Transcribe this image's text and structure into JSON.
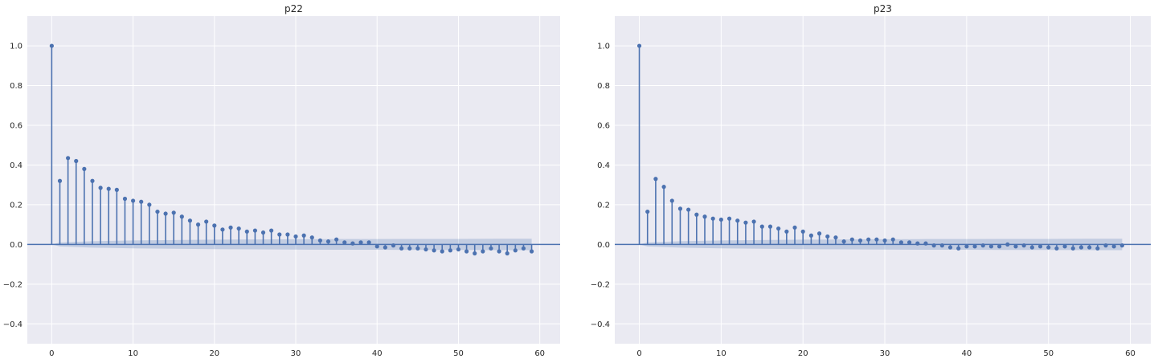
{
  "chart_data": [
    {
      "type": "stem",
      "title": "p22",
      "xlabel": "",
      "ylabel": "",
      "xlim": [
        -3,
        62.5
      ],
      "ylim": [
        -0.5,
        1.15
      ],
      "xticks": [
        0,
        10,
        20,
        30,
        40,
        50,
        60
      ],
      "yticks": [
        -0.4,
        -0.2,
        0.0,
        0.2,
        0.4,
        0.6,
        0.8,
        1.0
      ],
      "xtick_labels": [
        "0",
        "10",
        "20",
        "30",
        "40",
        "50",
        "60"
      ],
      "ytick_labels": [
        "−0.4",
        "−0.2",
        "0.0",
        "0.2",
        "0.4",
        "0.6",
        "0.8",
        "1.0"
      ],
      "grid": true,
      "color": "#4c72b0",
      "confidence_band": {
        "lags": [
          0,
          1,
          5,
          10,
          15,
          20,
          25,
          30,
          35,
          40,
          45,
          50,
          55,
          59
        ],
        "lower": [
          0,
          -0.01,
          -0.016,
          -0.02,
          -0.022,
          -0.024,
          -0.025,
          -0.026,
          -0.027,
          -0.027,
          -0.028,
          -0.028,
          -0.029,
          -0.029
        ],
        "upper": [
          0,
          0.01,
          0.016,
          0.02,
          0.022,
          0.024,
          0.025,
          0.026,
          0.027,
          0.027,
          0.028,
          0.028,
          0.029,
          0.029
        ]
      },
      "lags": [
        0,
        1,
        2,
        3,
        4,
        5,
        6,
        7,
        8,
        9,
        10,
        11,
        12,
        13,
        14,
        15,
        16,
        17,
        18,
        19,
        20,
        21,
        22,
        23,
        24,
        25,
        26,
        27,
        28,
        29,
        30,
        31,
        32,
        33,
        34,
        35,
        36,
        37,
        38,
        39,
        40,
        41,
        42,
        43,
        44,
        45,
        46,
        47,
        48,
        49,
        50,
        51,
        52,
        53,
        54,
        55,
        56,
        57,
        58,
        59
      ],
      "values": [
        1.0,
        0.32,
        0.435,
        0.42,
        0.38,
        0.32,
        0.285,
        0.28,
        0.275,
        0.23,
        0.22,
        0.215,
        0.2,
        0.165,
        0.155,
        0.16,
        0.14,
        0.12,
        0.1,
        0.115,
        0.095,
        0.075,
        0.085,
        0.08,
        0.065,
        0.07,
        0.06,
        0.07,
        0.05,
        0.05,
        0.04,
        0.045,
        0.035,
        0.02,
        0.015,
        0.025,
        0.01,
        0.005,
        0.01,
        0.01,
        -0.01,
        -0.015,
        -0.005,
        -0.02,
        -0.02,
        -0.02,
        -0.025,
        -0.03,
        -0.035,
        -0.03,
        -0.025,
        -0.035,
        -0.045,
        -0.035,
        -0.02,
        -0.035,
        -0.045,
        -0.03,
        -0.02,
        -0.035
      ]
    },
    {
      "type": "stem",
      "title": "p23",
      "xlabel": "",
      "ylabel": "",
      "xlim": [
        -3,
        62.5
      ],
      "ylim": [
        -0.5,
        1.15
      ],
      "xticks": [
        0,
        10,
        20,
        30,
        40,
        50,
        60
      ],
      "yticks": [
        -0.4,
        -0.2,
        0.0,
        0.2,
        0.4,
        0.6,
        0.8,
        1.0
      ],
      "xtick_labels": [
        "0",
        "10",
        "20",
        "30",
        "40",
        "50",
        "60"
      ],
      "ytick_labels": [
        "−0.4",
        "−0.2",
        "0.0",
        "0.2",
        "0.4",
        "0.6",
        "0.8",
        "1.0"
      ],
      "grid": true,
      "color": "#4c72b0",
      "confidence_band": {
        "lags": [
          0,
          1,
          5,
          10,
          15,
          20,
          25,
          30,
          35,
          40,
          45,
          50,
          55,
          59
        ],
        "lower": [
          0,
          -0.01,
          -0.016,
          -0.02,
          -0.022,
          -0.024,
          -0.025,
          -0.026,
          -0.027,
          -0.027,
          -0.028,
          -0.028,
          -0.029,
          -0.029
        ],
        "upper": [
          0,
          0.01,
          0.016,
          0.02,
          0.022,
          0.024,
          0.025,
          0.026,
          0.027,
          0.027,
          0.028,
          0.028,
          0.029,
          0.029
        ]
      },
      "lags": [
        0,
        1,
        2,
        3,
        4,
        5,
        6,
        7,
        8,
        9,
        10,
        11,
        12,
        13,
        14,
        15,
        16,
        17,
        18,
        19,
        20,
        21,
        22,
        23,
        24,
        25,
        26,
        27,
        28,
        29,
        30,
        31,
        32,
        33,
        34,
        35,
        36,
        37,
        38,
        39,
        40,
        41,
        42,
        43,
        44,
        45,
        46,
        47,
        48,
        49,
        50,
        51,
        52,
        53,
        54,
        55,
        56,
        57,
        58,
        59
      ],
      "values": [
        1.0,
        0.165,
        0.33,
        0.29,
        0.22,
        0.18,
        0.175,
        0.15,
        0.14,
        0.13,
        0.125,
        0.13,
        0.12,
        0.11,
        0.115,
        0.09,
        0.09,
        0.08,
        0.065,
        0.085,
        0.065,
        0.045,
        0.055,
        0.04,
        0.035,
        0.015,
        0.025,
        0.02,
        0.025,
        0.025,
        0.02,
        0.025,
        0.01,
        0.01,
        0.005,
        0.005,
        -0.005,
        -0.005,
        -0.015,
        -0.02,
        -0.01,
        -0.01,
        -0.005,
        -0.01,
        -0.01,
        0.0,
        -0.01,
        -0.005,
        -0.015,
        -0.01,
        -0.015,
        -0.02,
        -0.01,
        -0.02,
        -0.015,
        -0.015,
        -0.02,
        -0.005,
        -0.01,
        -0.005
      ]
    }
  ]
}
